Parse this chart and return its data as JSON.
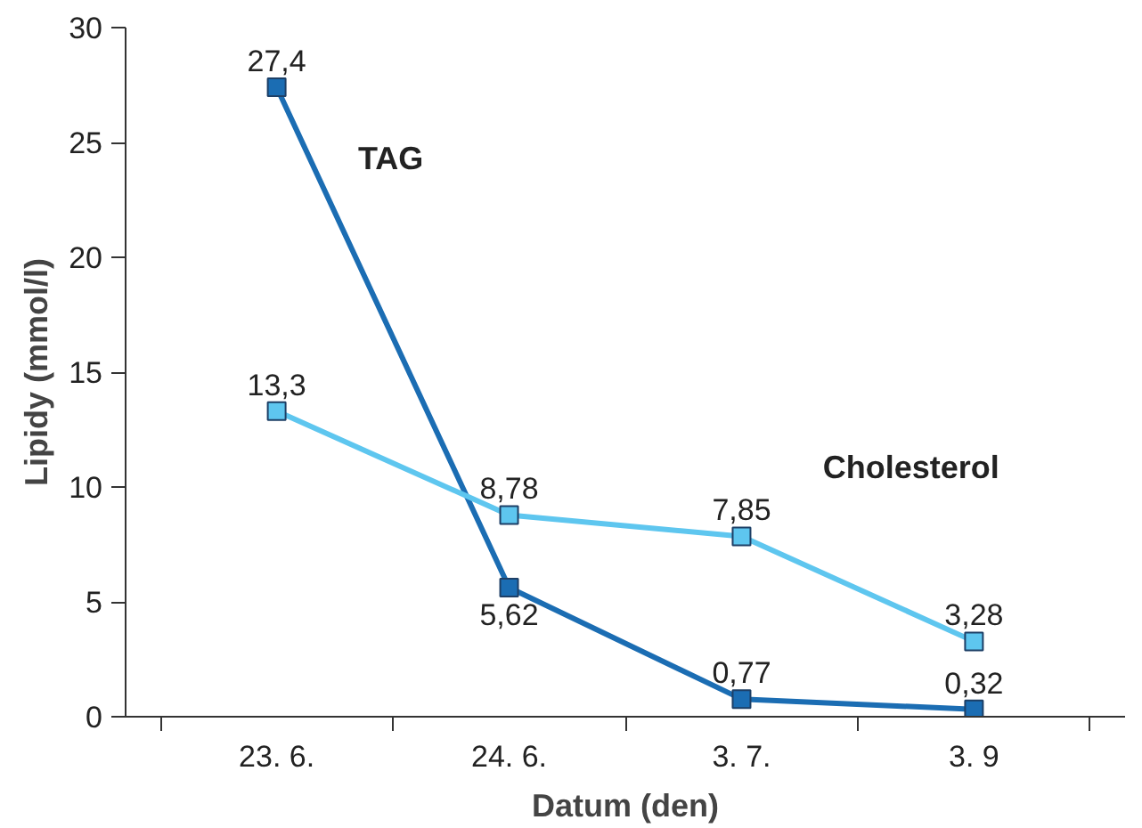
{
  "chart_data": {
    "type": "line",
    "xlabel": "Datum (den)",
    "ylabel": "Lipidy (mmol/l)",
    "categories": [
      "23. 6.",
      "24. 6.",
      "3. 7.",
      "3. 9"
    ],
    "ylim": [
      0,
      30
    ],
    "yticks": [
      0,
      5,
      10,
      15,
      20,
      25,
      30
    ],
    "grid": false,
    "marker": "square",
    "line_style": "solid",
    "series": [
      {
        "name": "TAG",
        "color": "#1b6db3",
        "values": [
          27.4,
          5.62,
          0.77,
          0.32
        ],
        "value_labels": [
          "27,4",
          "5,62",
          "0,77",
          "0,32"
        ]
      },
      {
        "name": "Cholesterol",
        "color": "#5ec6ef",
        "values": [
          13.3,
          8.78,
          7.85,
          3.28
        ],
        "value_labels": [
          "13,3",
          "8,78",
          "7,85",
          "3,28"
        ]
      }
    ]
  }
}
